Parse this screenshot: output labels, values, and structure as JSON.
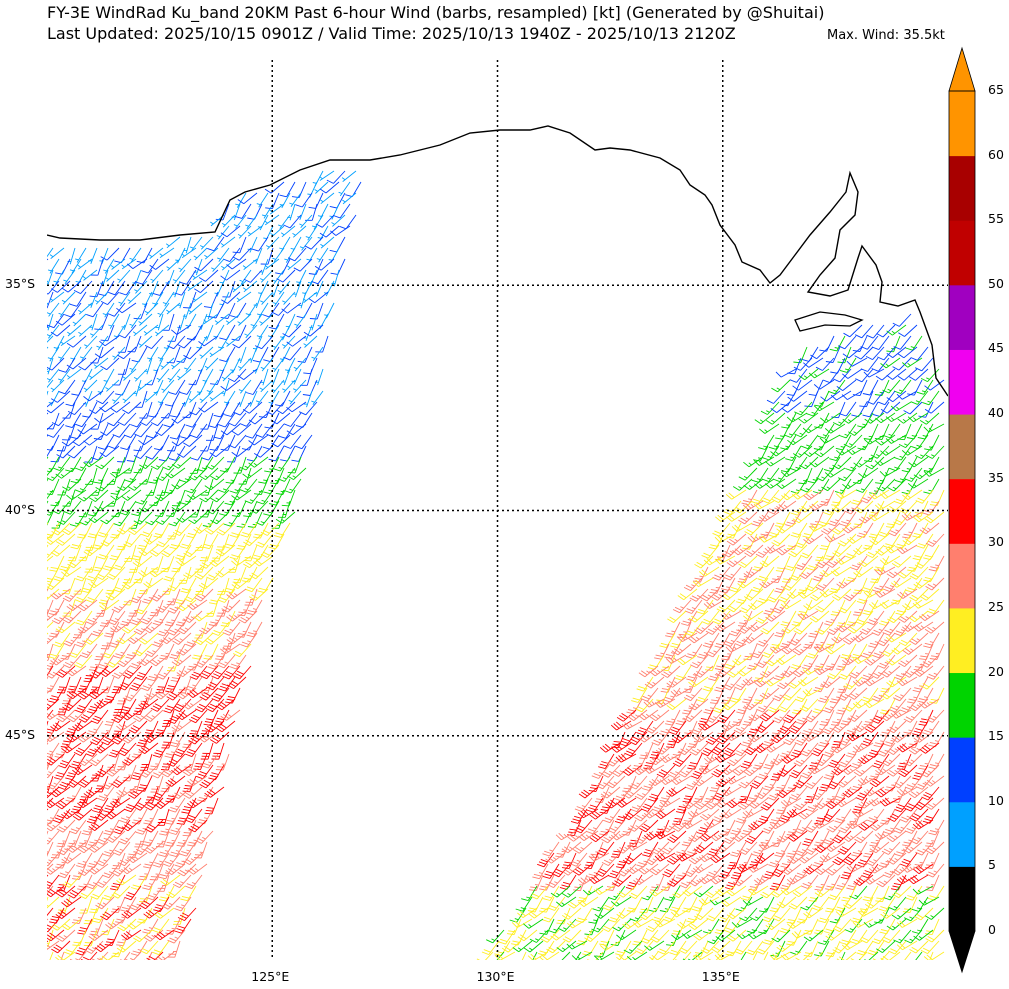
{
  "header": {
    "title": "FY-3E WindRad Ku_band 20KM Past 6-hour Wind (barbs, resampled) [kt] (Generated by @Shuitai)",
    "subtitle": "Last Updated: 2025/10/15 0901Z / Valid Time: 2025/10/13 1940Z - 2025/10/13 2120Z",
    "max_wind": "Max. Wind: 35.5kt"
  },
  "map": {
    "lon_range": [
      120,
      140
    ],
    "lat_range": [
      -30,
      -50
    ],
    "lon_ticks": [
      {
        "value": 125,
        "label": "125°E"
      },
      {
        "value": 130,
        "label": "130°E"
      },
      {
        "value": 135,
        "label": "135°E"
      }
    ],
    "lat_ticks": [
      {
        "value": -35,
        "label": "35°S"
      },
      {
        "value": -40,
        "label": "40°S"
      },
      {
        "value": -45,
        "label": "45°S"
      }
    ]
  },
  "colorbar": {
    "labels": [
      "0",
      "5",
      "10",
      "15",
      "20",
      "25",
      "30",
      "35",
      "40",
      "45",
      "50",
      "55",
      "60",
      "65"
    ],
    "colors": [
      "#000000",
      "#00a0ff",
      "#0040ff",
      "#00d400",
      "#ffee22",
      "#ff7f6e",
      "#ff0000",
      "#b87848",
      "#f000f0",
      "#a000c0",
      "#c00000",
      "#a80000",
      "#ff9400"
    ],
    "extend": "both"
  },
  "wind_field": {
    "west_swath": [
      {
        "lat": [
          -31.5,
          -37.5
        ],
        "speeds": [
          7,
          7,
          12
        ]
      },
      {
        "lat": [
          -37.5,
          -38.7
        ],
        "speeds": [
          12
        ]
      },
      {
        "lat": [
          -38.7,
          -40.2
        ],
        "speeds": [
          17
        ]
      },
      {
        "lat": [
          -40.2,
          -41.5
        ],
        "speeds": [
          22
        ]
      },
      {
        "lat": [
          -41.5,
          -43.3
        ],
        "speeds": [
          27,
          27,
          22
        ]
      },
      {
        "lat": [
          -43.3,
          -46.9
        ],
        "speeds": [
          32,
          32,
          27
        ]
      },
      {
        "lat": [
          -46.9,
          -48.0
        ],
        "speeds": [
          27
        ]
      },
      {
        "lat": [
          -48.0,
          -50.0
        ],
        "speeds": [
          32,
          27,
          22
        ]
      }
    ],
    "east_swath": [
      {
        "lat": [
          -35.0,
          -37.8
        ],
        "speeds": [
          12,
          12,
          17
        ]
      },
      {
        "lat": [
          -37.8,
          -39.5
        ],
        "speeds": [
          17
        ]
      },
      {
        "lat": [
          -39.5,
          -42.4
        ],
        "speeds": [
          22,
          22,
          27
        ]
      },
      {
        "lat": [
          -42.4,
          -44.2
        ],
        "speeds": [
          27,
          27,
          22
        ]
      },
      {
        "lat": [
          -44.2,
          -48.2
        ],
        "speeds": [
          32,
          27,
          27
        ]
      },
      {
        "lat": [
          -48.2,
          -50.0
        ],
        "speeds": [
          22,
          17,
          22
        ]
      }
    ]
  }
}
